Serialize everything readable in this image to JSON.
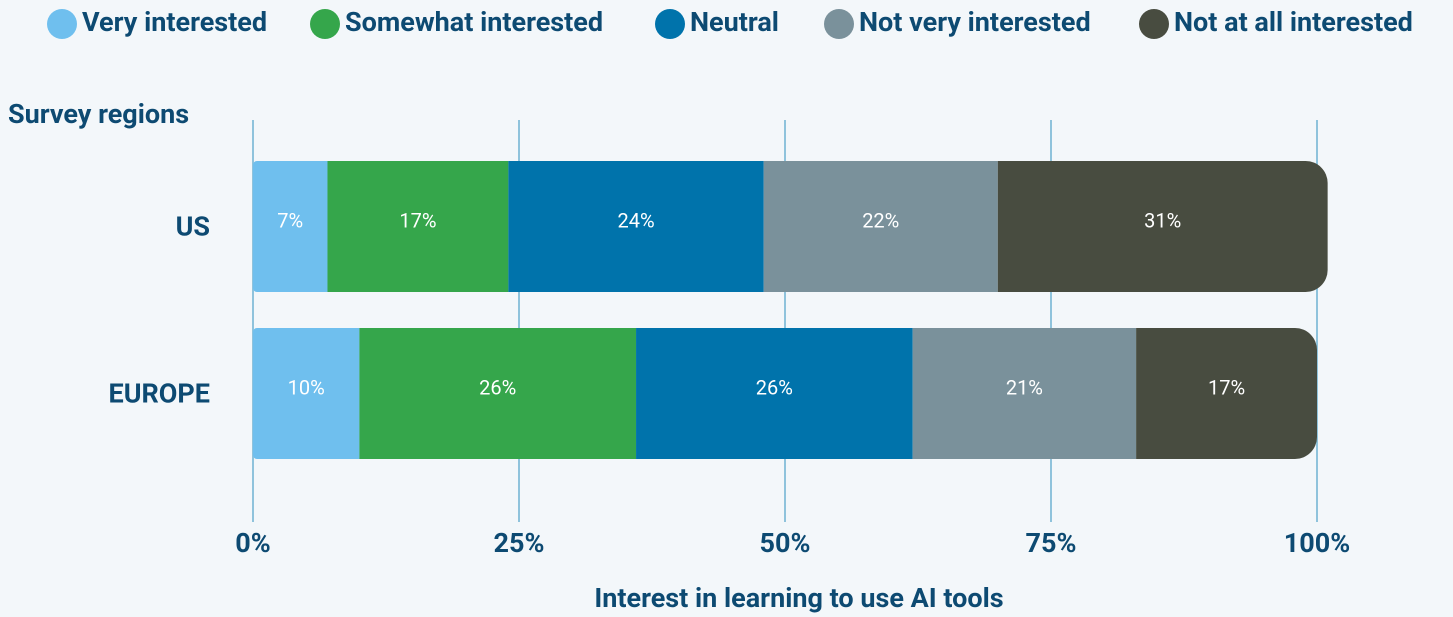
{
  "chart_data": {
    "type": "stacked-barh",
    "y_axis_label": "Survey regions",
    "x_axis_label": "Interest in learning to use AI tools",
    "categories": [
      "US",
      "EUROPE"
    ],
    "series": [
      {
        "name": "Very interested",
        "color": "#6fbfee",
        "values": [
          7,
          10
        ],
        "value_labels": [
          "7%",
          "10%"
        ]
      },
      {
        "name": "Somewhat interested",
        "color": "#35a64b",
        "values": [
          17,
          26
        ],
        "value_labels": [
          "17%",
          "26%"
        ]
      },
      {
        "name": "Neutral",
        "color": "#0073ab",
        "values": [
          24,
          26
        ],
        "value_labels": [
          "24%",
          "26%"
        ]
      },
      {
        "name": "Not very interested",
        "color": "#7a919b",
        "values": [
          22,
          21
        ],
        "value_labels": [
          "22%",
          "21%"
        ]
      },
      {
        "name": "Not at all interested",
        "color": "#484c40",
        "values": [
          31,
          17
        ],
        "value_labels": [
          "31%",
          "17%"
        ]
      }
    ],
    "xlim": [
      0,
      100
    ],
    "xticks": [
      {
        "value": 0,
        "label": "0%"
      },
      {
        "value": 25,
        "label": "25%"
      },
      {
        "value": 50,
        "label": "50%"
      },
      {
        "value": 75,
        "label": "75%"
      },
      {
        "value": 100,
        "label": "100%"
      }
    ],
    "grid": true,
    "legend": "top"
  }
}
